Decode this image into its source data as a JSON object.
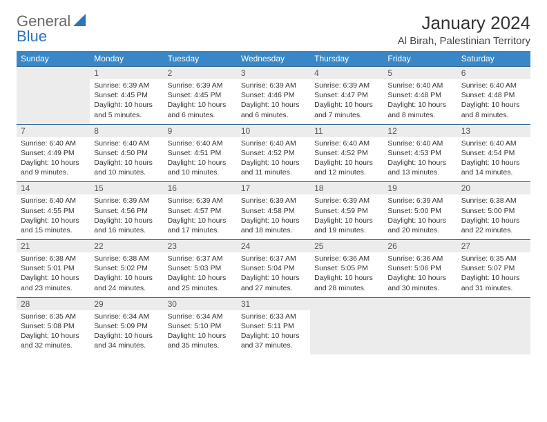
{
  "brand": {
    "part1": "General",
    "part2": "Blue"
  },
  "title": "January 2024",
  "location": "Al Birah, Palestinian Territory",
  "colors": {
    "header_bg": "#3a87c7",
    "header_text": "#ffffff",
    "daynum_bg": "#ececec",
    "cell_border": "#3a6a90",
    "brand_gray": "#6a6a6a",
    "brand_blue": "#2d74b8"
  },
  "weekdays": [
    "Sunday",
    "Monday",
    "Tuesday",
    "Wednesday",
    "Thursday",
    "Friday",
    "Saturday"
  ],
  "weeks": [
    [
      null,
      {
        "n": "1",
        "sr": "Sunrise: 6:39 AM",
        "ss": "Sunset: 4:45 PM",
        "dl1": "Daylight: 10 hours",
        "dl2": "and 5 minutes."
      },
      {
        "n": "2",
        "sr": "Sunrise: 6:39 AM",
        "ss": "Sunset: 4:45 PM",
        "dl1": "Daylight: 10 hours",
        "dl2": "and 6 minutes."
      },
      {
        "n": "3",
        "sr": "Sunrise: 6:39 AM",
        "ss": "Sunset: 4:46 PM",
        "dl1": "Daylight: 10 hours",
        "dl2": "and 6 minutes."
      },
      {
        "n": "4",
        "sr": "Sunrise: 6:39 AM",
        "ss": "Sunset: 4:47 PM",
        "dl1": "Daylight: 10 hours",
        "dl2": "and 7 minutes."
      },
      {
        "n": "5",
        "sr": "Sunrise: 6:40 AM",
        "ss": "Sunset: 4:48 PM",
        "dl1": "Daylight: 10 hours",
        "dl2": "and 8 minutes."
      },
      {
        "n": "6",
        "sr": "Sunrise: 6:40 AM",
        "ss": "Sunset: 4:48 PM",
        "dl1": "Daylight: 10 hours",
        "dl2": "and 8 minutes."
      }
    ],
    [
      {
        "n": "7",
        "sr": "Sunrise: 6:40 AM",
        "ss": "Sunset: 4:49 PM",
        "dl1": "Daylight: 10 hours",
        "dl2": "and 9 minutes."
      },
      {
        "n": "8",
        "sr": "Sunrise: 6:40 AM",
        "ss": "Sunset: 4:50 PM",
        "dl1": "Daylight: 10 hours",
        "dl2": "and 10 minutes."
      },
      {
        "n": "9",
        "sr": "Sunrise: 6:40 AM",
        "ss": "Sunset: 4:51 PM",
        "dl1": "Daylight: 10 hours",
        "dl2": "and 10 minutes."
      },
      {
        "n": "10",
        "sr": "Sunrise: 6:40 AM",
        "ss": "Sunset: 4:52 PM",
        "dl1": "Daylight: 10 hours",
        "dl2": "and 11 minutes."
      },
      {
        "n": "11",
        "sr": "Sunrise: 6:40 AM",
        "ss": "Sunset: 4:52 PM",
        "dl1": "Daylight: 10 hours",
        "dl2": "and 12 minutes."
      },
      {
        "n": "12",
        "sr": "Sunrise: 6:40 AM",
        "ss": "Sunset: 4:53 PM",
        "dl1": "Daylight: 10 hours",
        "dl2": "and 13 minutes."
      },
      {
        "n": "13",
        "sr": "Sunrise: 6:40 AM",
        "ss": "Sunset: 4:54 PM",
        "dl1": "Daylight: 10 hours",
        "dl2": "and 14 minutes."
      }
    ],
    [
      {
        "n": "14",
        "sr": "Sunrise: 6:40 AM",
        "ss": "Sunset: 4:55 PM",
        "dl1": "Daylight: 10 hours",
        "dl2": "and 15 minutes."
      },
      {
        "n": "15",
        "sr": "Sunrise: 6:39 AM",
        "ss": "Sunset: 4:56 PM",
        "dl1": "Daylight: 10 hours",
        "dl2": "and 16 minutes."
      },
      {
        "n": "16",
        "sr": "Sunrise: 6:39 AM",
        "ss": "Sunset: 4:57 PM",
        "dl1": "Daylight: 10 hours",
        "dl2": "and 17 minutes."
      },
      {
        "n": "17",
        "sr": "Sunrise: 6:39 AM",
        "ss": "Sunset: 4:58 PM",
        "dl1": "Daylight: 10 hours",
        "dl2": "and 18 minutes."
      },
      {
        "n": "18",
        "sr": "Sunrise: 6:39 AM",
        "ss": "Sunset: 4:59 PM",
        "dl1": "Daylight: 10 hours",
        "dl2": "and 19 minutes."
      },
      {
        "n": "19",
        "sr": "Sunrise: 6:39 AM",
        "ss": "Sunset: 5:00 PM",
        "dl1": "Daylight: 10 hours",
        "dl2": "and 20 minutes."
      },
      {
        "n": "20",
        "sr": "Sunrise: 6:38 AM",
        "ss": "Sunset: 5:00 PM",
        "dl1": "Daylight: 10 hours",
        "dl2": "and 22 minutes."
      }
    ],
    [
      {
        "n": "21",
        "sr": "Sunrise: 6:38 AM",
        "ss": "Sunset: 5:01 PM",
        "dl1": "Daylight: 10 hours",
        "dl2": "and 23 minutes."
      },
      {
        "n": "22",
        "sr": "Sunrise: 6:38 AM",
        "ss": "Sunset: 5:02 PM",
        "dl1": "Daylight: 10 hours",
        "dl2": "and 24 minutes."
      },
      {
        "n": "23",
        "sr": "Sunrise: 6:37 AM",
        "ss": "Sunset: 5:03 PM",
        "dl1": "Daylight: 10 hours",
        "dl2": "and 25 minutes."
      },
      {
        "n": "24",
        "sr": "Sunrise: 6:37 AM",
        "ss": "Sunset: 5:04 PM",
        "dl1": "Daylight: 10 hours",
        "dl2": "and 27 minutes."
      },
      {
        "n": "25",
        "sr": "Sunrise: 6:36 AM",
        "ss": "Sunset: 5:05 PM",
        "dl1": "Daylight: 10 hours",
        "dl2": "and 28 minutes."
      },
      {
        "n": "26",
        "sr": "Sunrise: 6:36 AM",
        "ss": "Sunset: 5:06 PM",
        "dl1": "Daylight: 10 hours",
        "dl2": "and 30 minutes."
      },
      {
        "n": "27",
        "sr": "Sunrise: 6:35 AM",
        "ss": "Sunset: 5:07 PM",
        "dl1": "Daylight: 10 hours",
        "dl2": "and 31 minutes."
      }
    ],
    [
      {
        "n": "28",
        "sr": "Sunrise: 6:35 AM",
        "ss": "Sunset: 5:08 PM",
        "dl1": "Daylight: 10 hours",
        "dl2": "and 32 minutes."
      },
      {
        "n": "29",
        "sr": "Sunrise: 6:34 AM",
        "ss": "Sunset: 5:09 PM",
        "dl1": "Daylight: 10 hours",
        "dl2": "and 34 minutes."
      },
      {
        "n": "30",
        "sr": "Sunrise: 6:34 AM",
        "ss": "Sunset: 5:10 PM",
        "dl1": "Daylight: 10 hours",
        "dl2": "and 35 minutes."
      },
      {
        "n": "31",
        "sr": "Sunrise: 6:33 AM",
        "ss": "Sunset: 5:11 PM",
        "dl1": "Daylight: 10 hours",
        "dl2": "and 37 minutes."
      },
      null,
      null,
      null
    ]
  ]
}
